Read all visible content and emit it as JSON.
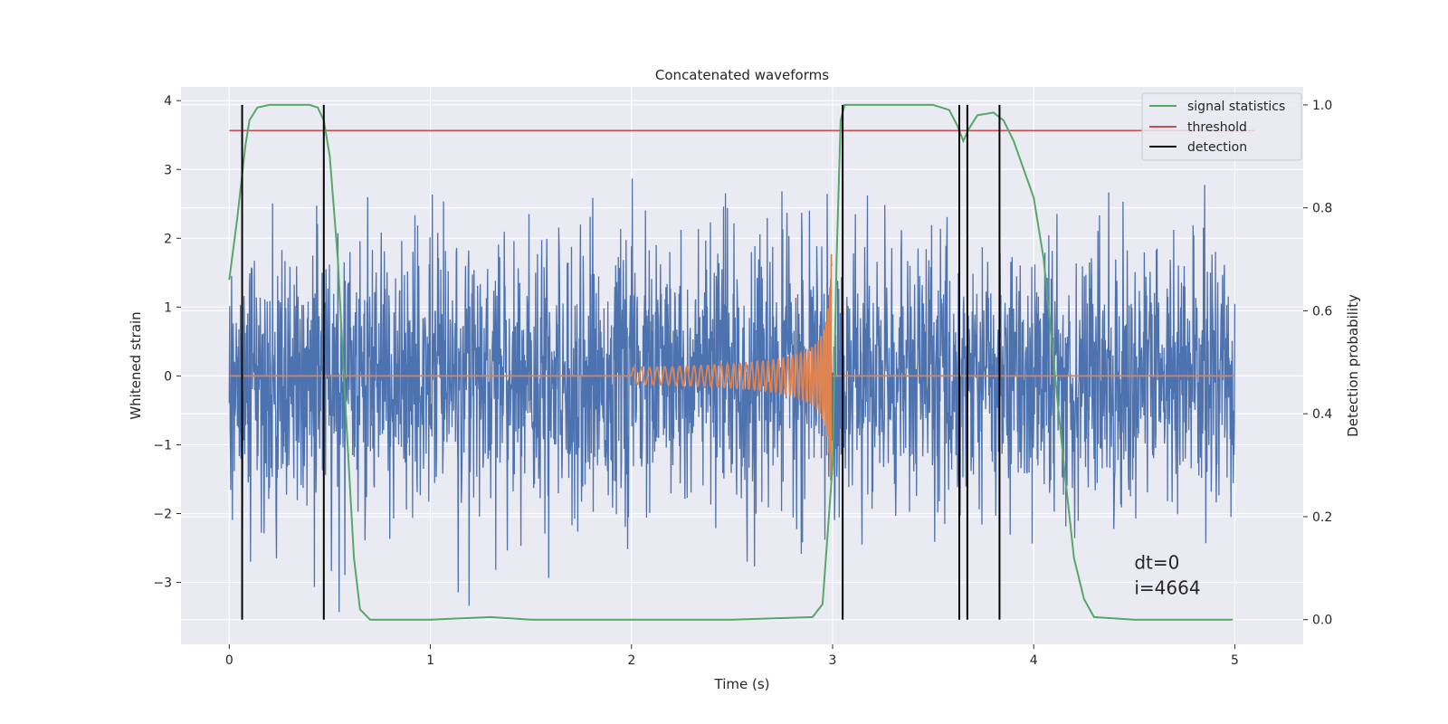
{
  "chart_data": {
    "type": "line",
    "title": "Concatenated waveforms",
    "xlabel": "Time (s)",
    "ylabel_left": "Whitened strain",
    "ylabel_right": "Detection probability",
    "xlim": [
      -0.24,
      5.34
    ],
    "ylim_left": [
      -3.9,
      4.2
    ],
    "ylim_right": [
      -0.048,
      1.035
    ],
    "x_ticks": [
      0,
      1,
      2,
      3,
      4,
      5
    ],
    "y_left_ticks": [
      -3,
      -2,
      -1,
      0,
      1,
      2,
      3,
      4
    ],
    "y_right_ticks": [
      0.0,
      0.2,
      0.4,
      0.6,
      0.8,
      1.0
    ],
    "y_right_tick_labels": [
      "0.0",
      "0.2",
      "0.4",
      "0.6",
      "0.8",
      "1.0"
    ],
    "grid": true,
    "legend_position": "top-right",
    "legend": [
      "signal statistics",
      "threshold",
      "detection"
    ],
    "colors": {
      "strain": "#4c72b0",
      "template": "#dd8452",
      "statistics": "#55a868",
      "threshold": "#c44e52",
      "detection": "#000000",
      "background": "#eaeaf2"
    },
    "strain_noise": {
      "x_range": [
        0,
        5
      ],
      "min": -3.6,
      "max": 3.8,
      "axis": "left"
    },
    "template_chirp": {
      "x_range": [
        2.0,
        3.0
      ],
      "peak_amplitude": 1.8,
      "axis": "left"
    },
    "signal_statistics": {
      "axis": "right",
      "x": [
        0,
        0.04,
        0.08,
        0.1,
        0.14,
        0.2,
        0.4,
        0.44,
        0.47,
        0.5,
        0.54,
        0.58,
        0.62,
        0.65,
        0.7,
        1.0,
        1.3,
        1.5,
        2.0,
        2.5,
        2.9,
        2.95,
        3.0,
        3.02,
        3.04,
        3.06,
        3.1,
        3.5,
        3.58,
        3.62,
        3.65,
        3.68,
        3.72,
        3.8,
        3.85,
        3.9,
        4.0,
        4.05,
        4.1,
        4.15,
        4.2,
        4.25,
        4.3,
        4.5,
        4.7,
        4.99
      ],
      "y": [
        0.66,
        0.78,
        0.92,
        0.97,
        0.995,
        1.0,
        1.0,
        0.995,
        0.97,
        0.9,
        0.7,
        0.4,
        0.12,
        0.02,
        0.0,
        0.0,
        0.005,
        0.0,
        0.0,
        0.0,
        0.005,
        0.03,
        0.3,
        0.7,
        0.97,
        1.0,
        1.0,
        1.0,
        0.99,
        0.96,
        0.93,
        0.955,
        0.98,
        0.985,
        0.97,
        0.93,
        0.82,
        0.7,
        0.5,
        0.3,
        0.12,
        0.04,
        0.005,
        0.0,
        0.0,
        0.0
      ]
    },
    "threshold": {
      "value": 0.95,
      "x_range": [
        0,
        5.1
      ],
      "axis": "right"
    },
    "detections": [
      0.064,
      0.47,
      3.05,
      3.63,
      3.67,
      3.83
    ],
    "detection_span": [
      0.0,
      1.0
    ],
    "annotations": [
      "dt=0",
      "i=4664"
    ],
    "annotation_anchor": [
      4.5,
      -2.8
    ]
  }
}
